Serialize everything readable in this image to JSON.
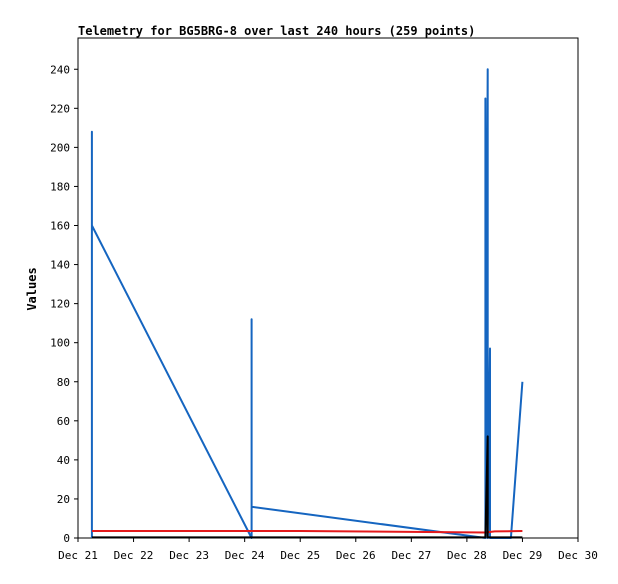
{
  "colors": {
    "background": "#ffffff",
    "axis": "#000000",
    "series_blue": "#1565c0",
    "series_red": "#e41a1c",
    "series_black": "#000000"
  },
  "chart_data": {
    "type": "line",
    "title": "Telemetry for BG5BRG-8 over last 240 hours (259 points)",
    "ylabel": "Values",
    "xlabel": "",
    "x_ticks": [
      "Dec 21",
      "Dec 22",
      "Dec 23",
      "Dec 24",
      "Dec 25",
      "Dec 26",
      "Dec 27",
      "Dec 28",
      "Dec 29",
      "Dec 30"
    ],
    "xlim": [
      "2023-12-21T00:00",
      "2023-12-30T00:00"
    ],
    "y_ticks": [
      0,
      20,
      40,
      60,
      80,
      100,
      120,
      140,
      160,
      180,
      200,
      220,
      240
    ],
    "ylim": [
      0,
      256
    ],
    "grid": false,
    "legend": "none",
    "series": [
      {
        "color": "#1565c0",
        "points": [
          [
            "2023-12-21T06:00",
            0
          ],
          [
            "2023-12-21T06:00",
            208
          ],
          [
            "2023-12-21T06:00",
            160
          ],
          [
            "2023-12-24T03:00",
            0
          ],
          [
            "2023-12-24T03:00",
            112
          ],
          [
            "2023-12-24T03:00",
            16
          ],
          [
            "2023-12-28T08:00",
            0
          ],
          [
            "2023-12-28T08:00",
            225
          ],
          [
            "2023-12-28T08:00",
            0
          ],
          [
            "2023-12-28T09:00",
            240
          ],
          [
            "2023-12-28T09:00",
            0
          ],
          [
            "2023-12-28T10:00",
            97
          ],
          [
            "2023-12-28T10:00",
            0
          ],
          [
            "2023-12-28T19:00",
            0
          ],
          [
            "2023-12-29T00:00",
            80
          ]
        ]
      },
      {
        "color": "#e41a1c",
        "points": [
          [
            "2023-12-21T06:00",
            3.6
          ],
          [
            "2023-12-25T00:00",
            3.6
          ],
          [
            "2023-12-28T08:00",
            2.8
          ],
          [
            "2023-12-28T12:00",
            3.4
          ],
          [
            "2023-12-29T00:00",
            3.6
          ]
        ]
      },
      {
        "color": "#000000",
        "points": [
          [
            "2023-12-21T06:00",
            0.3
          ],
          [
            "2023-12-28T08:00",
            0.3
          ],
          [
            "2023-12-28T09:00",
            52
          ],
          [
            "2023-12-28T09:00",
            0.3
          ],
          [
            "2023-12-29T00:00",
            0.3
          ]
        ]
      }
    ]
  }
}
